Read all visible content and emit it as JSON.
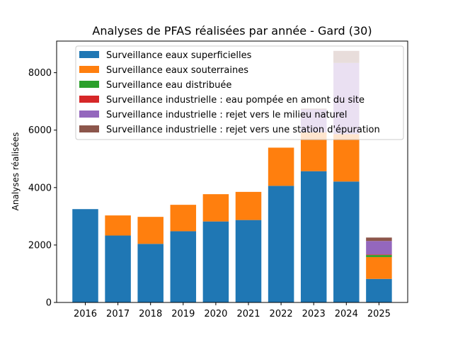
{
  "chart_data": {
    "type": "bar",
    "stacked": true,
    "title": "Analyses de PFAS réalisées par année - Gard (30)",
    "xlabel": "",
    "ylabel": "Analyses réalisées",
    "ylim": [
      0,
      9100
    ],
    "yticks": [
      0,
      2000,
      4000,
      6000,
      8000
    ],
    "legend_position": "top-center",
    "grid": false,
    "categories": [
      "2016",
      "2017",
      "2018",
      "2019",
      "2020",
      "2021",
      "2022",
      "2023",
      "2024",
      "2025"
    ],
    "series": [
      {
        "name": "Surveillance eaux superficielles",
        "color": "#1f77b4",
        "values": [
          3250,
          2330,
          2040,
          2480,
          2820,
          2870,
          4060,
          4570,
          4210,
          820
        ]
      },
      {
        "name": "Surveillance eaux souterraines",
        "color": "#ff7f0e",
        "values": [
          0,
          700,
          940,
          920,
          950,
          980,
          1330,
          1350,
          1650,
          760
        ]
      },
      {
        "name": "Surveillance eau distribuée",
        "color": "#2ca02c",
        "values": [
          0,
          0,
          0,
          0,
          0,
          0,
          0,
          0,
          0,
          70
        ]
      },
      {
        "name": "Surveillance industrielle : eau pompée en amont du site",
        "color": "#d62728",
        "values": [
          0,
          0,
          0,
          0,
          0,
          0,
          0,
          0,
          0,
          20
        ]
      },
      {
        "name": "Surveillance industrielle : rejet vers le milieu naturel",
        "color": "#9467bd",
        "values": [
          0,
          0,
          0,
          0,
          0,
          0,
          0,
          800,
          2480,
          470
        ]
      },
      {
        "name": "Surveillance industrielle : rejet vers une station d'épuration",
        "color": "#8c564b",
        "values": [
          0,
          0,
          0,
          0,
          0,
          0,
          0,
          30,
          420,
          120
        ]
      }
    ]
  }
}
